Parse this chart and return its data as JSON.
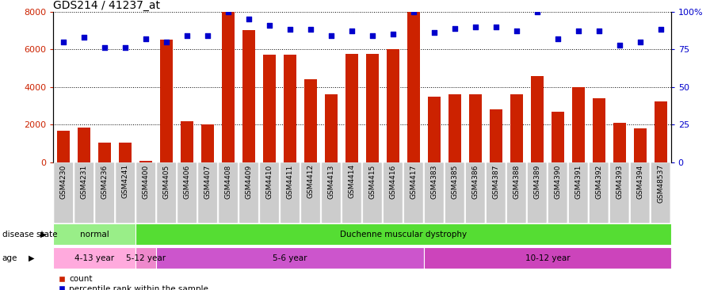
{
  "title": "GDS214 / 41237_at",
  "samples": [
    "GSM4230",
    "GSM4231",
    "GSM4236",
    "GSM4241",
    "GSM4400",
    "GSM4405",
    "GSM4406",
    "GSM4407",
    "GSM4408",
    "GSM4409",
    "GSM4410",
    "GSM4411",
    "GSM4412",
    "GSM4413",
    "GSM4414",
    "GSM4415",
    "GSM4416",
    "GSM4417",
    "GSM4383",
    "GSM4385",
    "GSM4386",
    "GSM4387",
    "GSM4388",
    "GSM4389",
    "GSM4390",
    "GSM4391",
    "GSM4392",
    "GSM4393",
    "GSM4394",
    "GSM48537"
  ],
  "counts": [
    1700,
    1850,
    1050,
    1050,
    100,
    6500,
    2200,
    2000,
    8000,
    7000,
    5700,
    5700,
    4400,
    3600,
    5750,
    5750,
    6000,
    8000,
    3500,
    3600,
    3600,
    2800,
    3600,
    4600,
    2700,
    4000,
    3400,
    2100,
    1800,
    3250
  ],
  "percentiles": [
    80,
    83,
    76,
    76,
    82,
    80,
    84,
    84,
    100,
    95,
    91,
    88,
    88,
    84,
    87,
    84,
    85,
    100,
    86,
    89,
    90,
    90,
    87,
    100,
    82,
    87,
    87,
    78,
    80,
    88
  ],
  "bar_color": "#cc2200",
  "dot_color": "#0000cc",
  "ylim_left": [
    0,
    8000
  ],
  "ylim_right": [
    0,
    100
  ],
  "yticks_left": [
    0,
    2000,
    4000,
    6000,
    8000
  ],
  "yticks_right": [
    0,
    25,
    50,
    75,
    100
  ],
  "disease_state_groups": [
    {
      "label": "normal",
      "start": 0,
      "end": 4,
      "color": "#99ee88"
    },
    {
      "label": "Duchenne muscular dystrophy",
      "start": 4,
      "end": 30,
      "color": "#55dd33"
    }
  ],
  "age_groups": [
    {
      "label": "4-13 year",
      "start": 0,
      "end": 4,
      "color": "#ffaadd"
    },
    {
      "label": "5-12 year",
      "start": 4,
      "end": 5,
      "color": "#ee88cc"
    },
    {
      "label": "5-6 year",
      "start": 5,
      "end": 18,
      "color": "#cc55cc"
    },
    {
      "label": "10-12 year",
      "start": 18,
      "end": 30,
      "color": "#cc44bb"
    }
  ],
  "row_label_disease": "disease state",
  "row_label_age": "age",
  "legend_count_label": "count",
  "legend_pct_label": "percentile rank within the sample",
  "background_color": "#ffffff",
  "tick_label_bg": "#cccccc"
}
